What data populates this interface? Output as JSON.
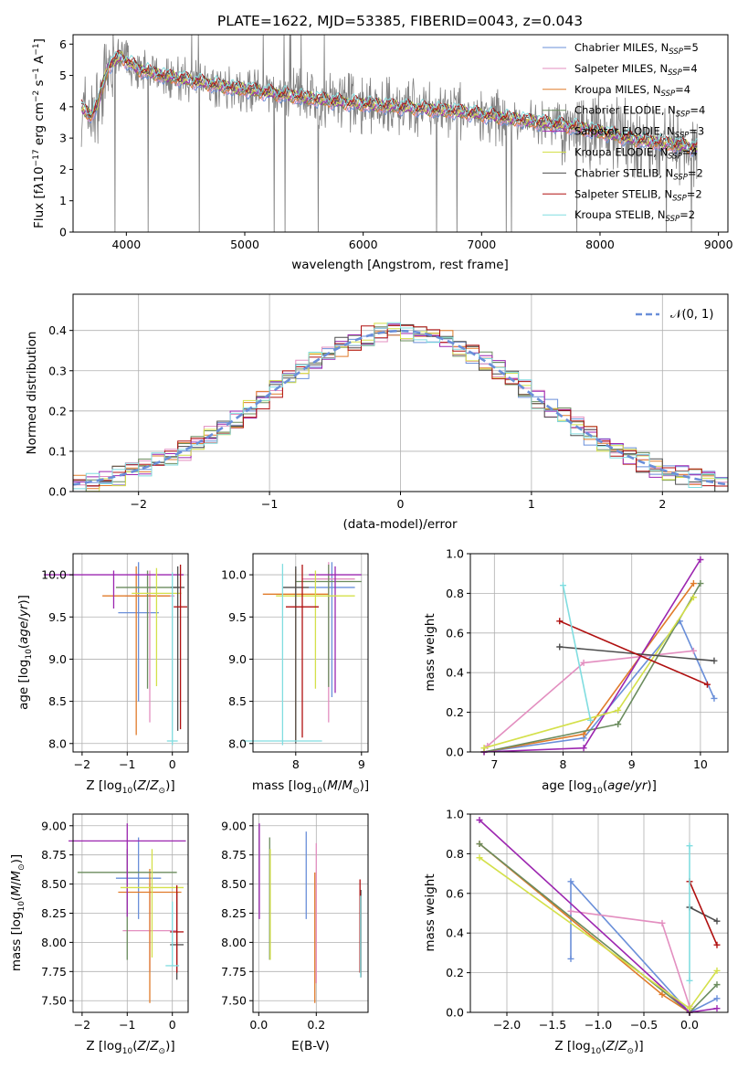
{
  "colors": {
    "chabrier_miles": "#6a8fd9",
    "salpeter_miles": "#e38fc0",
    "kroupa_miles": "#e07b2a",
    "chabrier_elodie": "#6b8c5e",
    "salpeter_elodie": "#9c26b0",
    "kroupa_elodie": "#d4e04a",
    "chabrier_stelib": "#4d4d4d",
    "salpeter_stelib": "#b01010",
    "kroupa_stelib": "#80dde0",
    "data_gray": "#808080",
    "normal_dash": "#6a8fd9"
  },
  "chart_data": [
    {
      "type": "line",
      "id": "spectrum",
      "title": "PLATE=1622, MJD=53385, FIBERID=0043, z=0.043",
      "xlabel": "wavelength [Angstrom, rest frame]",
      "ylabel": "Flux [fλ10⁻¹⁷ erg cm⁻² s⁻¹ A⁻¹]",
      "xlim": [
        3550,
        9080
      ],
      "ylim": [
        0,
        6.3
      ],
      "xticks": [
        "4000",
        "5000",
        "6000",
        "7000",
        "8000",
        "9000"
      ],
      "yticks": [
        "0",
        "1",
        "2",
        "3",
        "4",
        "5",
        "6"
      ],
      "legend_position": "top-right",
      "series": [
        {
          "name": "Chabrier MILES, N_SSP=5",
          "label_main": "Chabrier MILES, N",
          "label_sub": "SSP",
          "label_tail": "=5",
          "color_key": "chabrier_miles"
        },
        {
          "name": "Salpeter MILES, N_SSP=4",
          "label_main": "Salpeter MILES, N",
          "label_sub": "SSP",
          "label_tail": "=4",
          "color_key": "salpeter_miles"
        },
        {
          "name": "Kroupa MILES, N_SSP=4",
          "label_main": "Kroupa MILES, N",
          "label_sub": "SSP",
          "label_tail": "=4",
          "color_key": "kroupa_miles"
        },
        {
          "name": "Chabrier ELODIE, N_SSP=4",
          "label_main": "Chabrier ELODIE, N",
          "label_sub": "SSP",
          "label_tail": "=4",
          "color_key": "chabrier_elodie"
        },
        {
          "name": "Salpeter ELODIE, N_SSP=3",
          "label_main": "Salpeter ELODIE, N",
          "label_sub": "SSP",
          "label_tail": "=3",
          "color_key": "salpeter_elodie"
        },
        {
          "name": "Kroupa ELODIE, N_SSP=4",
          "label_main": "Kroupa ELODIE, N",
          "label_sub": "SSP",
          "label_tail": "=4",
          "color_key": "kroupa_elodie"
        },
        {
          "name": "Chabrier STELIB, N_SSP=2",
          "label_main": "Chabrier STELIB, N",
          "label_sub": "SSP",
          "label_tail": "=2",
          "color_key": "chabrier_stelib"
        },
        {
          "name": "Salpeter STELIB, N_SSP=2",
          "label_main": "Salpeter STELIB, N",
          "label_sub": "SSP",
          "label_tail": "=2",
          "color_key": "salpeter_stelib"
        },
        {
          "name": "Kroupa STELIB, N_SSP=2",
          "label_main": "Kroupa STELIB, N",
          "label_sub": "SSP",
          "label_tail": "=2",
          "color_key": "kroupa_stelib"
        }
      ],
      "continuum_anchors": {
        "wavelength": [
          3620,
          3700,
          3760,
          3850,
          3950,
          4100,
          4300,
          4600,
          4900,
          5300,
          5800,
          6300,
          6800,
          7300,
          7800,
          8300,
          8800
        ],
        "flux": [
          4.0,
          3.7,
          4.1,
          5.3,
          5.6,
          5.2,
          5.0,
          4.8,
          4.6,
          4.4,
          4.15,
          4.0,
          3.85,
          3.6,
          3.35,
          2.95,
          2.7
        ]
      }
    },
    {
      "type": "line",
      "id": "residual_hist",
      "xlabel": "(data-model)/error",
      "ylabel": "Normed distribution",
      "xlim": [
        -2.5,
        2.5
      ],
      "ylim": [
        0,
        0.49
      ],
      "xticks": [
        "−2",
        "−1",
        "0",
        "1",
        "2"
      ],
      "yticks": [
        "0.0",
        "0.1",
        "0.2",
        "0.3",
        "0.4"
      ],
      "legend": [
        {
          "label": "𝒩(0, 1)",
          "color_key": "normal_dash",
          "style": "dashed"
        }
      ],
      "legend_position": "top-right",
      "bin_width": 0.1,
      "description_values": "step histograms of residuals for each of the 9 fits, approximately following the standard normal density (peak ~0.40 at 0)"
    },
    {
      "type": "scatter",
      "id": "age_vs_Z",
      "xlabel": "Z [log₁₀(Z/Z⊙)]",
      "ylabel": "age  [log₁₀(age/yr)]",
      "xlim": [
        -2.2,
        0.35
      ],
      "ylim": [
        7.9,
        10.25
      ],
      "xticks": [
        "−2",
        "−1",
        "0"
      ],
      "yticks": [
        "8.0",
        "8.5",
        "9.0",
        "9.5",
        "10.0"
      ],
      "points": [
        {
          "color_key": "chabrier_miles",
          "x": -0.75,
          "y": 9.55,
          "xerr": 0.45,
          "yerr_lo": 1.05,
          "yerr_hi": 0.6
        },
        {
          "color_key": "salpeter_miles",
          "x": -0.5,
          "y": 9.75,
          "xerr": 0.55,
          "yerr_lo": 1.5,
          "yerr_hi": 0.3
        },
        {
          "color_key": "kroupa_miles",
          "x": -0.8,
          "y": 9.75,
          "xerr": 0.75,
          "yerr_lo": 1.65,
          "yerr_hi": 0.35
        },
        {
          "color_key": "chabrier_elodie",
          "x": -0.55,
          "y": 9.85,
          "xerr": 0.7,
          "yerr_lo": 1.2,
          "yerr_hi": 0.2
        },
        {
          "color_key": "salpeter_elodie",
          "x": -1.3,
          "y": 10.0,
          "xerr": 1.55,
          "yerr_lo": 0.4,
          "yerr_hi": 0.05
        },
        {
          "color_key": "kroupa_elodie",
          "x": -0.35,
          "y": 9.78,
          "xerr": 0.55,
          "yerr_lo": 1.1,
          "yerr_hi": 0.3
        },
        {
          "color_key": "chabrier_stelib",
          "x": 0.12,
          "y": 9.85,
          "xerr": 0.15,
          "yerr_lo": 1.7,
          "yerr_hi": 0.25
        },
        {
          "color_key": "salpeter_stelib",
          "x": 0.18,
          "y": 9.62,
          "xerr": 0.15,
          "yerr_lo": 1.45,
          "yerr_hi": 0.5
        },
        {
          "color_key": "kroupa_stelib",
          "x": 0.0,
          "y": 8.03,
          "xerr": 0.12,
          "yerr_lo": 0.05,
          "yerr_hi": 2.0
        }
      ]
    },
    {
      "type": "scatter",
      "id": "age_vs_mass",
      "xlabel": "mass [log₁₀(M/M⊙)]",
      "ylabel": "",
      "xlim": [
        7.35,
        9.1
      ],
      "ylim": [
        7.9,
        10.25
      ],
      "xticks": [
        "8",
        "9"
      ],
      "yticks": [
        "8.0",
        "8.5",
        "9.0",
        "9.5",
        "10.0"
      ],
      "points": [
        {
          "color_key": "chabrier_miles",
          "x": 8.55,
          "y": 9.85,
          "xerr": 0.35,
          "yerr_lo": 1.3,
          "yerr_hi": 0.3
        },
        {
          "color_key": "salpeter_miles",
          "x": 8.5,
          "y": 9.95,
          "xerr": 0.4,
          "yerr_lo": 1.7,
          "yerr_hi": 0.2
        },
        {
          "color_key": "kroupa_miles",
          "x": 8.0,
          "y": 9.77,
          "xerr": 0.5,
          "yerr_lo": 1.75,
          "yerr_hi": 0.3
        },
        {
          "color_key": "chabrier_elodie",
          "x": 8.5,
          "y": 9.92,
          "xerr": 0.5,
          "yerr_lo": 1.25,
          "yerr_hi": 0.2
        },
        {
          "color_key": "salpeter_elodie",
          "x": 8.6,
          "y": 10.0,
          "xerr": 0.4,
          "yerr_lo": 1.4,
          "yerr_hi": 0.1
        },
        {
          "color_key": "kroupa_elodie",
          "x": 8.3,
          "y": 9.75,
          "xerr": 0.6,
          "yerr_lo": 1.1,
          "yerr_hi": 0.3
        },
        {
          "color_key": "chabrier_stelib",
          "x": 8.0,
          "y": 9.85,
          "xerr": 0.2,
          "yerr_lo": 1.85,
          "yerr_hi": 0.25
        },
        {
          "color_key": "salpeter_stelib",
          "x": 8.1,
          "y": 9.62,
          "xerr": 0.25,
          "yerr_lo": 1.55,
          "yerr_hi": 0.5
        },
        {
          "color_key": "kroupa_stelib",
          "x": 7.8,
          "y": 8.03,
          "xerr": 0.6,
          "yerr_lo": 0.05,
          "yerr_hi": 2.1
        }
      ]
    },
    {
      "type": "line",
      "id": "mass_weight_vs_age",
      "xlabel": "age  [log₁₀(age/yr)]",
      "ylabel": "mass weight",
      "xlim": [
        6.65,
        10.4
      ],
      "ylim": [
        0,
        1.0
      ],
      "xticks": [
        "7",
        "8",
        "9",
        "10"
      ],
      "yticks": [
        "0.0",
        "0.2",
        "0.4",
        "0.6",
        "0.8",
        "1.0"
      ],
      "series": [
        {
          "color_key": "chabrier_miles",
          "x": [
            6.85,
            8.3,
            9.7,
            10.2
          ],
          "y": [
            0.0,
            0.07,
            0.66,
            0.27
          ]
        },
        {
          "color_key": "salpeter_miles",
          "x": [
            6.9,
            8.3,
            9.9
          ],
          "y": [
            0.03,
            0.45,
            0.51
          ]
        },
        {
          "color_key": "kroupa_miles",
          "x": [
            6.85,
            8.3,
            9.9
          ],
          "y": [
            0.0,
            0.09,
            0.85
          ]
        },
        {
          "color_key": "chabrier_elodie",
          "x": [
            6.85,
            8.8,
            10.0
          ],
          "y": [
            0.0,
            0.14,
            0.85
          ]
        },
        {
          "color_key": "salpeter_elodie",
          "x": [
            6.85,
            8.3,
            10.0
          ],
          "y": [
            0.0,
            0.02,
            0.97
          ]
        },
        {
          "color_key": "kroupa_elodie",
          "x": [
            6.85,
            8.8,
            9.9
          ],
          "y": [
            0.02,
            0.21,
            0.78
          ]
        },
        {
          "color_key": "chabrier_stelib",
          "x": [
            7.95,
            10.2
          ],
          "y": [
            0.53,
            0.46
          ]
        },
        {
          "color_key": "salpeter_stelib",
          "x": [
            7.95,
            10.1
          ],
          "y": [
            0.66,
            0.34
          ]
        },
        {
          "color_key": "kroupa_stelib",
          "x": [
            8.0,
            8.4
          ],
          "y": [
            0.84,
            0.16
          ]
        }
      ]
    },
    {
      "type": "scatter",
      "id": "mass_vs_Z",
      "xlabel": "Z [log₁₀(Z/Z⊙)]",
      "ylabel": "mass [log₁₀(M/M⊙)]",
      "xlim": [
        -2.2,
        0.35
      ],
      "ylim": [
        7.4,
        9.1
      ],
      "xticks": [
        "−2",
        "−1",
        "0"
      ],
      "yticks": [
        "7.50",
        "7.75",
        "8.00",
        "8.25",
        "8.50",
        "8.75",
        "9.00"
      ],
      "points": [
        {
          "color_key": "chabrier_miles",
          "x": -0.75,
          "y": 8.55,
          "xerr": 0.5,
          "yerr_lo": 0.35,
          "yerr_hi": 0.35
        },
        {
          "color_key": "salpeter_miles",
          "x": -0.5,
          "y": 8.1,
          "xerr": 0.6,
          "yerr_lo": 0.35,
          "yerr_hi": 0.4
        },
        {
          "color_key": "kroupa_miles",
          "x": -0.5,
          "y": 8.43,
          "xerr": 0.7,
          "yerr_lo": 0.95,
          "yerr_hi": 0.2
        },
        {
          "color_key": "chabrier_elodie",
          "x": -1.0,
          "y": 8.6,
          "xerr": 1.1,
          "yerr_lo": 0.75,
          "yerr_hi": 0.2
        },
        {
          "color_key": "salpeter_elodie",
          "x": -1.0,
          "y": 8.87,
          "xerr": 1.3,
          "yerr_lo": 0.65,
          "yerr_hi": 0.15
        },
        {
          "color_key": "kroupa_elodie",
          "x": -0.45,
          "y": 8.47,
          "xerr": 0.7,
          "yerr_lo": 0.6,
          "yerr_hi": 0.33
        },
        {
          "color_key": "chabrier_stelib",
          "x": 0.1,
          "y": 7.98,
          "xerr": 0.15,
          "yerr_lo": 0.3,
          "yerr_hi": 0.45
        },
        {
          "color_key": "salpeter_stelib",
          "x": 0.1,
          "y": 8.09,
          "xerr": 0.15,
          "yerr_lo": 0.35,
          "yerr_hi": 0.4
        },
        {
          "color_key": "kroupa_stelib",
          "x": 0.0,
          "y": 7.8,
          "xerr": 0.15,
          "yerr_lo": 0.0,
          "yerr_hi": 0.55
        }
      ]
    },
    {
      "type": "scatter",
      "id": "mass_vs_ebv",
      "xlabel": "E(B-V)",
      "ylabel": "",
      "xlim": [
        -0.02,
        0.38
      ],
      "ylim": [
        7.4,
        9.1
      ],
      "xticks": [
        "0.0",
        "0.2"
      ],
      "yticks": [
        "7.50",
        "7.75",
        "8.00",
        "8.25",
        "8.50",
        "8.75",
        "9.00"
      ],
      "points": [
        {
          "color_key": "chabrier_miles",
          "x": 0.165,
          "y": 8.55,
          "yerr_lo": 0.35,
          "yerr_hi": 0.4
        },
        {
          "color_key": "salpeter_miles",
          "x": 0.2,
          "y": 8.1,
          "yerr_lo": 0.45,
          "yerr_hi": 0.75
        },
        {
          "color_key": "kroupa_miles",
          "x": 0.195,
          "y": 8.2,
          "yerr_lo": 0.72,
          "yerr_hi": 0.4
        },
        {
          "color_key": "chabrier_elodie",
          "x": 0.038,
          "y": 8.35,
          "yerr_lo": 0.5,
          "yerr_hi": 0.55
        },
        {
          "color_key": "salpeter_elodie",
          "x": 0.002,
          "y": 8.65,
          "yerr_lo": 0.45,
          "yerr_hi": 0.37
        },
        {
          "color_key": "kroupa_elodie",
          "x": 0.04,
          "y": 8.3,
          "yerr_lo": 0.45,
          "yerr_hi": 0.5
        },
        {
          "color_key": "chabrier_stelib",
          "x": 0.355,
          "y": 8.0,
          "yerr_lo": 0.3,
          "yerr_hi": 0.45
        },
        {
          "color_key": "salpeter_stelib",
          "x": 0.352,
          "y": 8.09,
          "yerr_lo": 0.35,
          "yerr_hi": 0.45
        },
        {
          "color_key": "kroupa_stelib",
          "x": 0.354,
          "y": 7.8,
          "yerr_lo": 0.1,
          "yerr_hi": 0.6
        }
      ]
    },
    {
      "type": "line",
      "id": "mass_weight_vs_Z",
      "xlabel": "Z [log₁₀(Z/Z⊙)]",
      "ylabel": "mass weight",
      "xlim": [
        -2.4,
        0.42
      ],
      "ylim": [
        0,
        1.0
      ],
      "xticks": [
        "−2.0",
        "−1.5",
        "−1.0",
        "−0.5",
        "0.0"
      ],
      "yticks": [
        "0.0",
        "0.2",
        "0.4",
        "0.6",
        "0.8",
        "1.0"
      ],
      "series": [
        {
          "color_key": "chabrier_miles",
          "x": [
            -1.3,
            -1.3,
            0.0,
            0.3
          ],
          "y": [
            0.27,
            0.66,
            0.0,
            0.07
          ]
        },
        {
          "color_key": "salpeter_miles",
          "x": [
            -1.3,
            -0.3,
            0.0
          ],
          "y": [
            0.51,
            0.45,
            0.03
          ]
        },
        {
          "color_key": "kroupa_miles",
          "x": [
            -2.3,
            -0.3,
            0.0
          ],
          "y": [
            0.85,
            0.09,
            0.0
          ]
        },
        {
          "color_key": "chabrier_elodie",
          "x": [
            -2.3,
            0.0,
            0.3
          ],
          "y": [
            0.85,
            0.0,
            0.14
          ]
        },
        {
          "color_key": "salpeter_elodie",
          "x": [
            -2.3,
            0.0,
            0.3
          ],
          "y": [
            0.97,
            0.0,
            0.02
          ]
        },
        {
          "color_key": "kroupa_elodie",
          "x": [
            -2.3,
            0.0,
            0.3
          ],
          "y": [
            0.78,
            0.02,
            0.21
          ]
        },
        {
          "color_key": "chabrier_stelib",
          "x": [
            0.0,
            0.3
          ],
          "y": [
            0.53,
            0.46
          ]
        },
        {
          "color_key": "salpeter_stelib",
          "x": [
            0.0,
            0.3
          ],
          "y": [
            0.66,
            0.34
          ]
        },
        {
          "color_key": "kroupa_stelib",
          "x": [
            0.0,
            0.0
          ],
          "y": [
            0.84,
            0.16
          ]
        }
      ]
    }
  ]
}
